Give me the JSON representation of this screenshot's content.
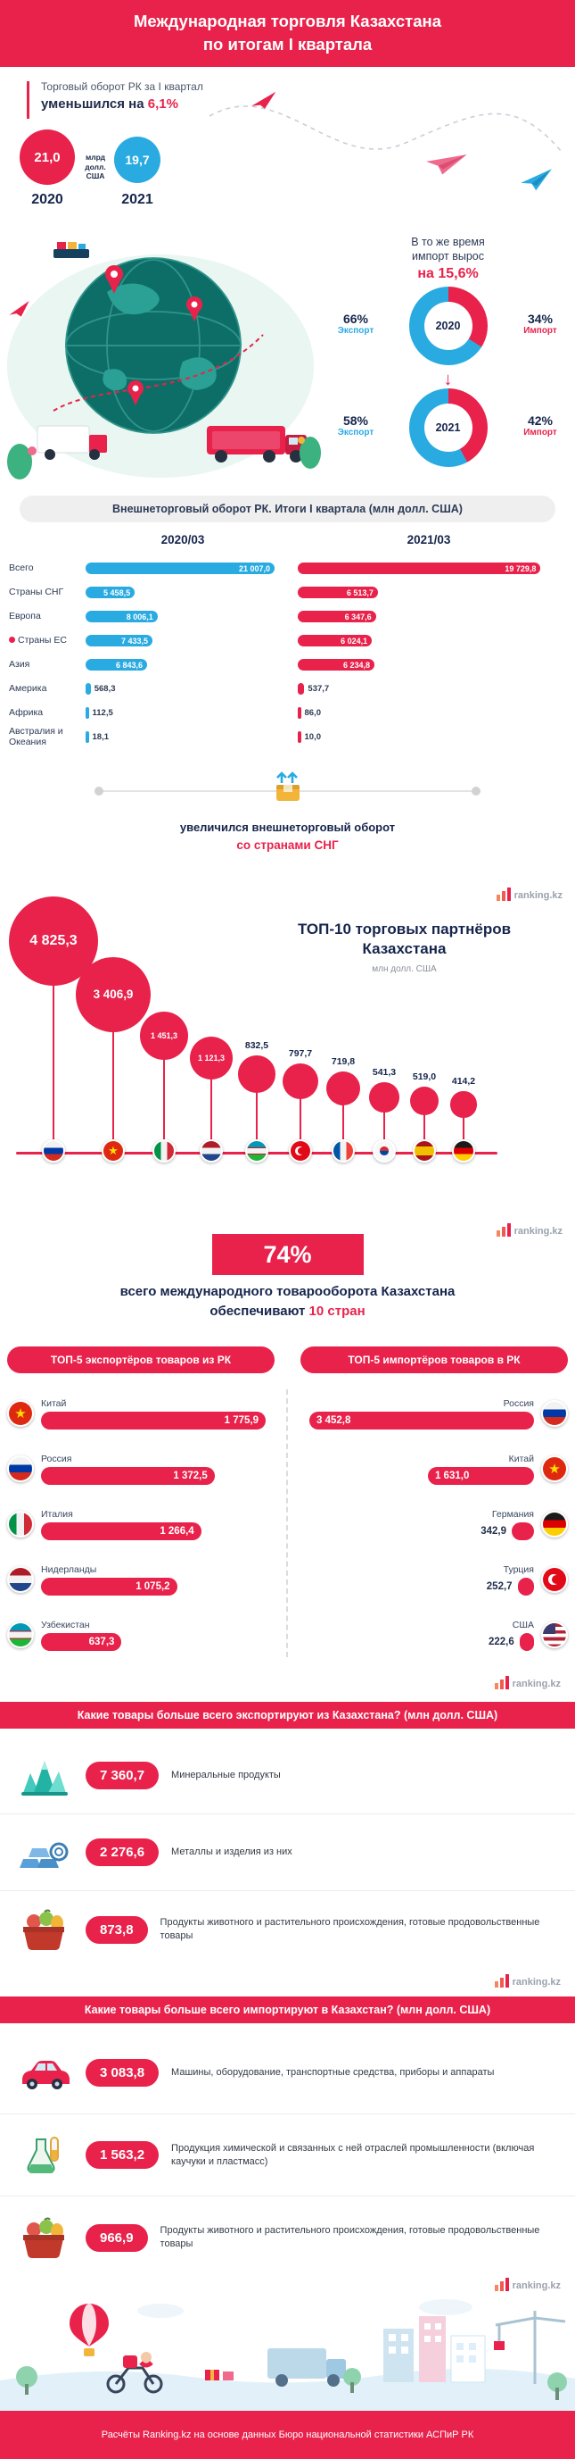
{
  "meta": {
    "brand": "ranking.kz",
    "colors": {
      "accent": "#e8224b",
      "blue": "#29abe2",
      "navy": "#1e2a4a",
      "gray_bg": "#efefef"
    }
  },
  "header": {
    "line1": "Международная торговля Казахстана",
    "line2": "по итогам I квартала"
  },
  "turnover": {
    "intro": "Торговый оборот РК за I квартал",
    "change_prefix": "уменьшился на",
    "change_value": "6,1%",
    "unit": "млрд долл. США",
    "years": [
      {
        "year": "2020",
        "value": "21,0"
      },
      {
        "year": "2021",
        "value": "19,7"
      }
    ]
  },
  "import_growth": {
    "line1": "В то же время",
    "line2": "импорт вырос",
    "value": "на 15,6%",
    "export_word": "Экспорт",
    "import_word": "Импорт",
    "donuts": [
      {
        "year": "2020",
        "export_pct": "66%",
        "import_pct": "34%",
        "export_n": 66,
        "import_n": 34
      },
      {
        "year": "2021",
        "export_pct": "58%",
        "import_pct": "42%",
        "export_n": 58,
        "import_n": 42
      }
    ]
  },
  "table": {
    "title": "Внешнеторговый оборот РК. Итоги I квартала (млн долл. США)",
    "col_2020": "2020/03",
    "col_2021": "2021/03",
    "rows": [
      {
        "label": "Всего",
        "v2020": "21 007,0",
        "n2020": 21007.0,
        "v2021": "19 729,8",
        "n2021": 19729.8
      },
      {
        "label": "Страны СНГ",
        "v2020": "5 458,5",
        "n2020": 5458.5,
        "v2021": "6 513,7",
        "n2021": 6513.7
      },
      {
        "label": "Европа",
        "v2020": "8 006,1",
        "n2020": 8006.1,
        "v2021": "6 347,6",
        "n2021": 6347.6
      },
      {
        "label": "Страны ЕС",
        "pin": true,
        "v2020": "7 433,5",
        "n2020": 7433.5,
        "v2021": "6 024,1",
        "n2021": 6024.1
      },
      {
        "label": "Азия",
        "v2020": "6 843,6",
        "n2020": 6843.6,
        "v2021": "6 234,8",
        "n2021": 6234.8
      },
      {
        "label": "Америка",
        "v2020": "568,3",
        "n2020": 568.3,
        "v2021": "537,7",
        "n2021": 537.7
      },
      {
        "label": "Африка",
        "v2020": "112,5",
        "n2020": 112.5,
        "v2021": "86,0",
        "n2021": 86.0
      },
      {
        "label": "Австралия и Океания",
        "v2020": "18,1",
        "n2020": 18.1,
        "v2021": "10,0",
        "n2021": 10.0
      }
    ],
    "note_line1": "увеличился внешнеторговый оборот",
    "note_line2": "со странами СНГ"
  },
  "top10": {
    "title_line1": "ТОП-10 торговых партнёров",
    "title_line2": "Казахстана",
    "unit": "млн долл. США",
    "partners": [
      {
        "value": "4 825,3",
        "n": 4825.3,
        "flag": "ru"
      },
      {
        "value": "3 406,9",
        "n": 3406.9,
        "flag": "cn"
      },
      {
        "value": "1 451,3",
        "n": 1451.3,
        "flag": "it"
      },
      {
        "value": "1 121,3",
        "n": 1121.3,
        "flag": "nl"
      },
      {
        "value": "832,5",
        "n": 832.5,
        "flag": "uz"
      },
      {
        "value": "797,7",
        "n": 797.7,
        "flag": "tr"
      },
      {
        "value": "719,8",
        "n": 719.8,
        "flag": "fr"
      },
      {
        "value": "541,3",
        "n": 541.3,
        "flag": "kr"
      },
      {
        "value": "519,0",
        "n": 519.0,
        "flag": "es"
      },
      {
        "value": "414,2",
        "n": 414.2,
        "flag": "de"
      }
    ]
  },
  "share": {
    "pct": "74%",
    "line1": "всего международного товарооборота Казахстана",
    "line2_prefix": "обеспечивают",
    "line2_highlight": "10 стран"
  },
  "top5_export": {
    "title": "ТОП-5 экспортёров товаров из РК",
    "rows": [
      {
        "country": "Китай",
        "flag": "cn",
        "value": "1 775,9",
        "n": 1775.9
      },
      {
        "country": "Россия",
        "flag": "ru",
        "value": "1 372,5",
        "n": 1372.5
      },
      {
        "country": "Италия",
        "flag": "it",
        "value": "1 266,4",
        "n": 1266.4
      },
      {
        "country": "Нидерланды",
        "flag": "nl",
        "value": "1 075,2",
        "n": 1075.2
      },
      {
        "country": "Узбекистан",
        "flag": "uz",
        "value": "637,3",
        "n": 637.3
      }
    ]
  },
  "top5_import": {
    "title": "ТОП-5 импортёров товаров в РК",
    "rows": [
      {
        "country": "Россия",
        "flag": "ru",
        "value": "3 452,8",
        "n": 3452.8
      },
      {
        "country": "Китай",
        "flag": "cn",
        "value": "1 631,0",
        "n": 1631.0
      },
      {
        "country": "Германия",
        "flag": "de",
        "value": "342,9",
        "n": 342.9
      },
      {
        "country": "Турция",
        "flag": "tr",
        "value": "252,7",
        "n": 252.7
      },
      {
        "country": "США",
        "flag": "us",
        "value": "222,6",
        "n": 222.6
      }
    ]
  },
  "export_goods": {
    "title": "Какие товары больше всего экспортируют из Казахстана? (млн долл. США)",
    "items": [
      {
        "value": "7 360,7",
        "label": "Минеральные продукты",
        "icon": "minerals-icon"
      },
      {
        "value": "2 276,6",
        "label": "Металлы и изделия из них",
        "icon": "metals-icon"
      },
      {
        "value": "873,8",
        "label": "Продукты животного и растительного происхождения, готовые продовольственные товары",
        "icon": "food-icon"
      }
    ]
  },
  "import_goods": {
    "title": "Какие товары больше всего импортируют в Казахстан? (млн долл. США)",
    "items": [
      {
        "value": "3 083,8",
        "label": "Машины, оборудование, транспортные средства, приборы и аппараты",
        "icon": "car-icon"
      },
      {
        "value": "1 563,2",
        "label": "Продукция химической и связанных с ней отраслей промышленности (включая каучуки и пластмасс)",
        "icon": "chemistry-icon"
      },
      {
        "value": "966,9",
        "label": "Продукты животного и растительного происхождения, готовые продовольственные товары",
        "icon": "food-icon"
      }
    ]
  },
  "footer": {
    "text": "Расчёты Ranking.kz на основе данных Бюро национальной статистики АСПиР РК"
  },
  "chart_data": [
    {
      "type": "bar",
      "title": "Торговый оборот РК за I квартал, млрд долл. США",
      "categories": [
        "2020",
        "2021"
      ],
      "values": [
        21.0,
        19.7
      ],
      "annotation": "уменьшился на 6,1%"
    },
    {
      "type": "pie",
      "title": "Структура внешней торговли 2020",
      "labels": [
        "Экспорт",
        "Импорт"
      ],
      "values": [
        66,
        34
      ]
    },
    {
      "type": "pie",
      "title": "Структура внешней торговли 2021",
      "labels": [
        "Экспорт",
        "Импорт"
      ],
      "values": [
        58,
        42
      ],
      "annotation": "импорт вырос на 15,6%"
    },
    {
      "type": "bar",
      "title": "Внешнеторговый оборот РК. Итоги I квартала (млн долл. США)",
      "categories": [
        "Всего",
        "Страны СНГ",
        "Европа",
        "Страны ЕС",
        "Азия",
        "Америка",
        "Африка",
        "Австралия и Океания"
      ],
      "series": [
        {
          "name": "2020/03",
          "values": [
            21007.0,
            5458.5,
            8006.1,
            7433.5,
            6843.6,
            568.3,
            112.5,
            18.1
          ]
        },
        {
          "name": "2021/03",
          "values": [
            19729.8,
            6513.7,
            6347.6,
            6024.1,
            6234.8,
            537.7,
            86.0,
            10.0
          ]
        }
      ]
    },
    {
      "type": "bubble",
      "title": "ТОП-10 торговых партнёров Казахстана, млн долл. США",
      "values": [
        4825.3,
        3406.9,
        1451.3,
        1121.3,
        832.5,
        797.7,
        719.8,
        541.3,
        519.0,
        414.2
      ]
    },
    {
      "type": "bar",
      "title": "ТОП-5 экспортёров товаров из РК, млн долл. США",
      "categories": [
        "Китай",
        "Россия",
        "Италия",
        "Нидерланды",
        "Узбекистан"
      ],
      "values": [
        1775.9,
        1372.5,
        1266.4,
        1075.2,
        637.3
      ]
    },
    {
      "type": "bar",
      "title": "ТОП-5 импортёров товаров в РК, млн долл. США",
      "categories": [
        "Россия",
        "Китай",
        "Германия",
        "Турция",
        "США"
      ],
      "values": [
        3452.8,
        1631.0,
        342.9,
        252.7,
        222.6
      ]
    },
    {
      "type": "bar",
      "title": "Экспорт товаров из Казахстана, млн долл. США",
      "categories": [
        "Минеральные продукты",
        "Металлы и изделия из них",
        "Продукты животного и растительного происхождения, готовые продовольственные товары"
      ],
      "values": [
        7360.7,
        2276.6,
        873.8
      ]
    },
    {
      "type": "bar",
      "title": "Импорт товаров в Казахстан, млн долл. США",
      "categories": [
        "Машины, оборудование, транспортные средства, приборы и аппараты",
        "Продукция химической и связанных с ней отраслей промышленности (включая каучуки и пластмасс)",
        "Продукты животного и растительного происхождения, готовые продовольственные товары"
      ],
      "values": [
        3083.8,
        1563.2,
        966.9
      ]
    }
  ]
}
